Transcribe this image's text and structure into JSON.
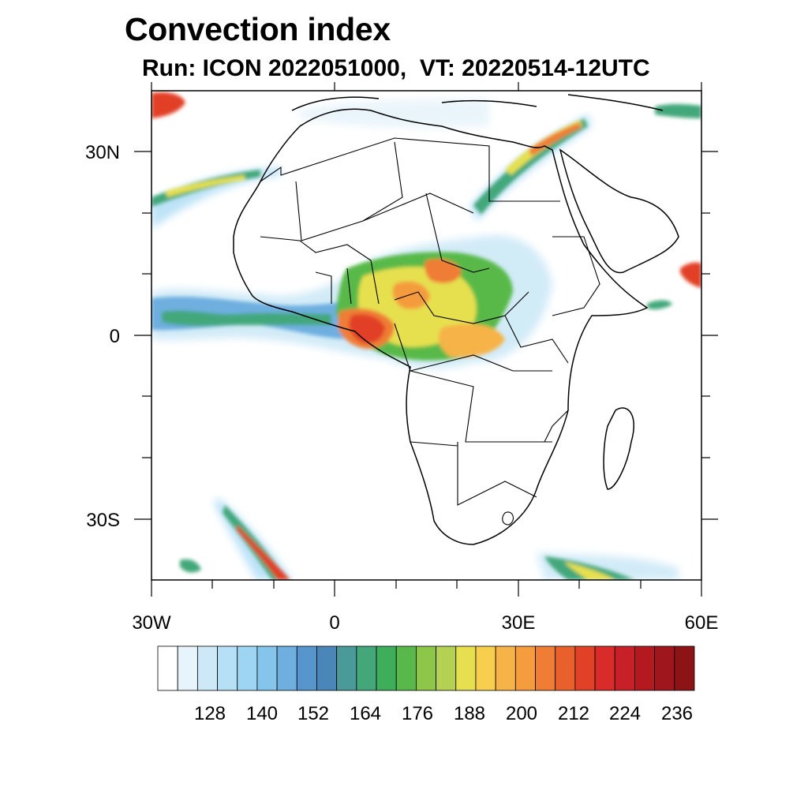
{
  "title": "Convection index",
  "subtitle": "Run: ICON 2022051000,  VT: 20220514-12UTC",
  "axes": {
    "lon_labels": [
      "30W",
      "0",
      "30E",
      "60E"
    ],
    "lat_labels": [
      "30N",
      "0",
      "30S"
    ]
  },
  "colorbar": {
    "tick_labels": [
      "128",
      "140",
      "152",
      "164",
      "176",
      "188",
      "200",
      "212",
      "224",
      "236"
    ],
    "colors": [
      "#ffffff",
      "#e8f4fb",
      "#cde9f7",
      "#b6e0f6",
      "#9dd5f3",
      "#85c5ec",
      "#6eafe0",
      "#5696cd",
      "#4b86b8",
      "#4b9a9a",
      "#43a77a",
      "#3eae5a",
      "#58b94a",
      "#8ec64a",
      "#b5d153",
      "#e6e050",
      "#f7ce4e",
      "#f6b347",
      "#f49c3e",
      "#ef7d35",
      "#e8602c",
      "#e14127",
      "#d92b2a",
      "#c82029",
      "#b4191f",
      "#a0161d",
      "#8c1316"
    ]
  },
  "map": {
    "extent": {
      "lon_min": -30,
      "lon_max": 60,
      "lat_min": -40,
      "lat_max": 40
    }
  }
}
